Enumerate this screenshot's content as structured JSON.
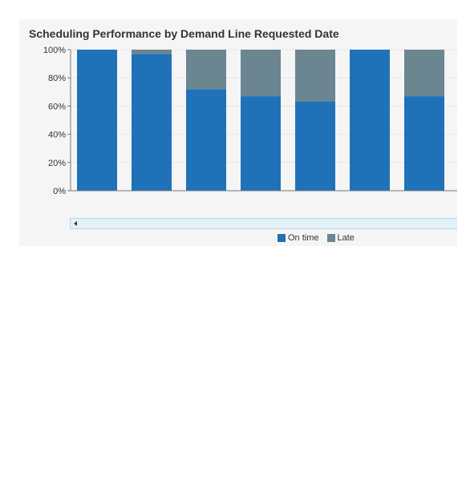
{
  "chart_data": {
    "type": "bar",
    "stacked": true,
    "title": "Scheduling Performance by Demand Line Requested Date",
    "xlabel": "",
    "ylabel": "",
    "ylim": [
      0,
      100
    ],
    "yticks": [
      "0%",
      "20%",
      "40%",
      "60%",
      "80%",
      "100%"
    ],
    "ytick_values": [
      0,
      20,
      40,
      60,
      80,
      100
    ],
    "grid": true,
    "legend_position": "bottom",
    "series": [
      {
        "name": "On time",
        "color": "#1f72b8",
        "values": [
          100,
          97,
          72,
          67,
          63.5,
          100,
          67
        ]
      },
      {
        "name": "Late",
        "color": "#6b8591",
        "values": [
          0,
          3,
          28,
          33,
          36.5,
          0,
          33
        ]
      }
    ]
  }
}
